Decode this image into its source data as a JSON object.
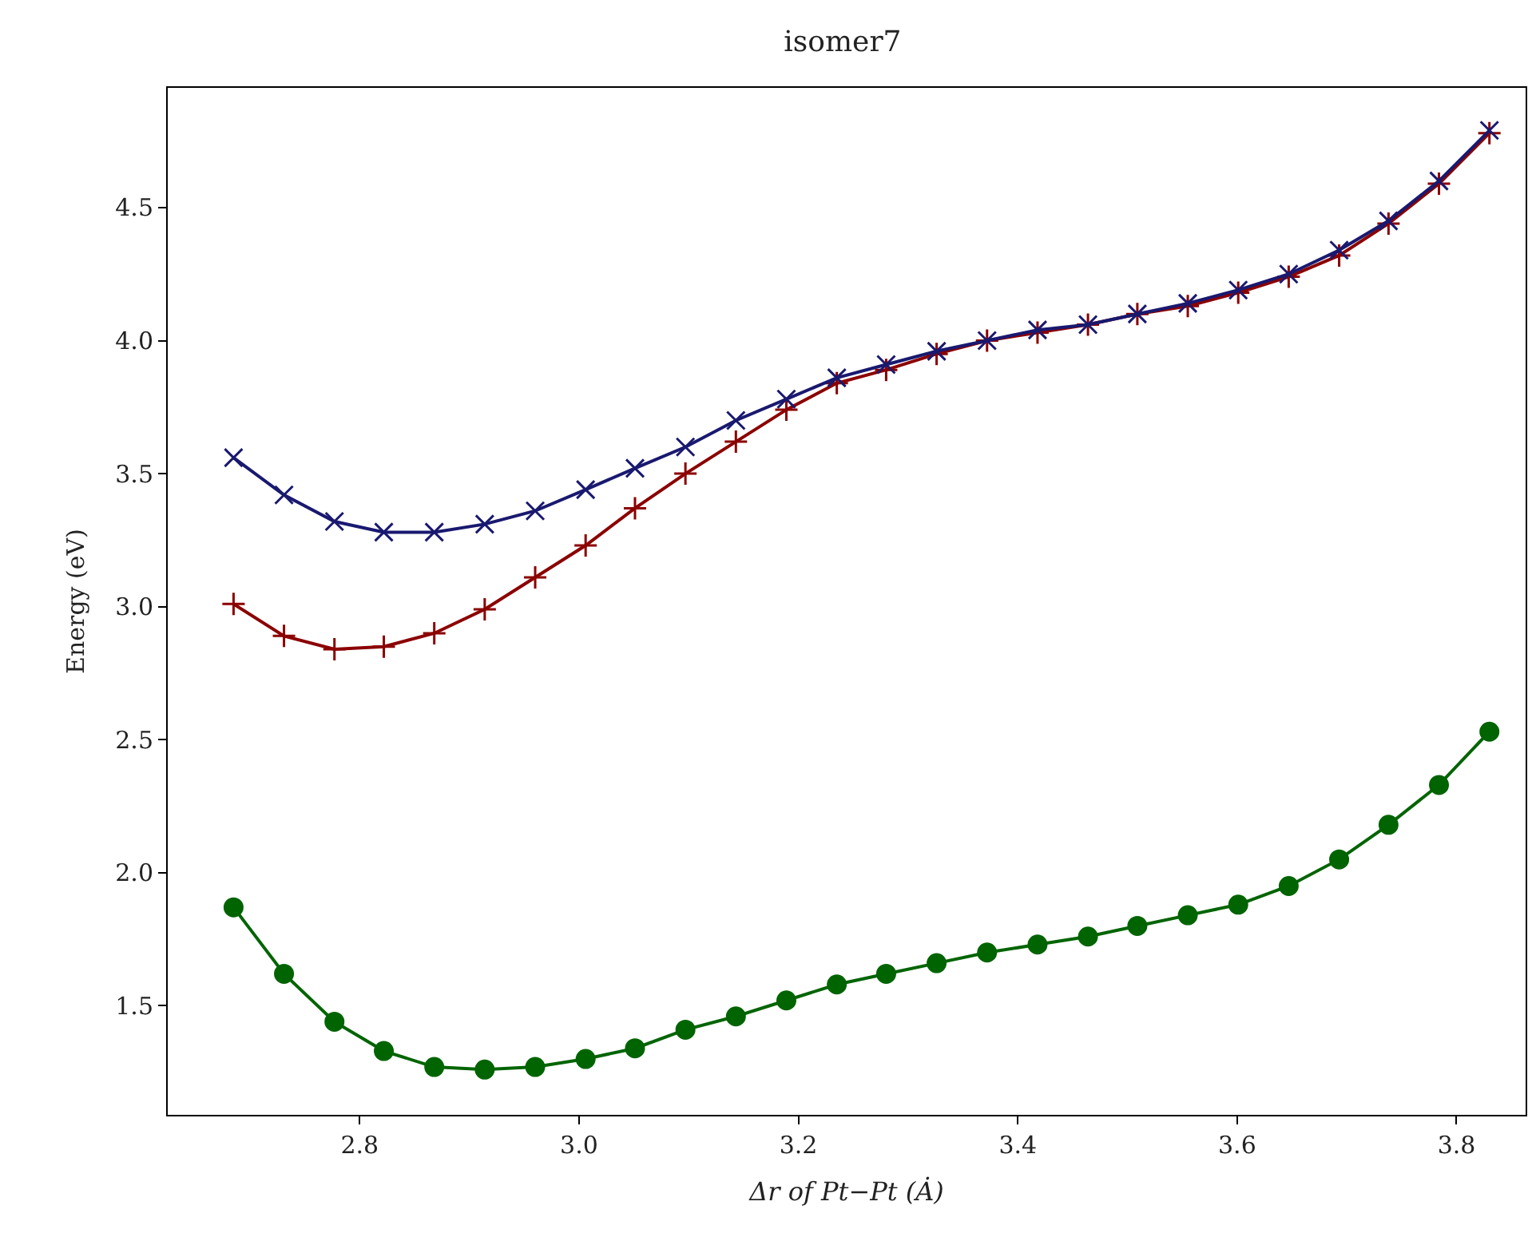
{
  "chart_data": {
    "type": "line",
    "title": "isomer7",
    "xlabel": "Δr of Pt−Pt (Ȧ)",
    "ylabel": "Energy (eV)",
    "x": [
      2.685,
      2.731,
      2.777,
      2.822,
      2.868,
      2.914,
      2.96,
      3.006,
      3.051,
      3.097,
      3.143,
      3.189,
      3.235,
      3.28,
      3.326,
      3.372,
      3.418,
      3.464,
      3.509,
      3.555,
      3.601,
      3.647,
      3.693,
      3.738,
      3.784,
      3.83
    ],
    "series": [
      {
        "color": "#8b0000",
        "marker": "plus",
        "values": [
          3.01,
          2.89,
          2.84,
          2.85,
          2.9,
          2.99,
          3.11,
          3.23,
          3.37,
          3.5,
          3.62,
          3.74,
          3.84,
          3.89,
          3.95,
          4.0,
          4.03,
          4.06,
          4.1,
          4.13,
          4.18,
          4.24,
          4.32,
          4.44,
          4.59,
          4.78
        ]
      },
      {
        "color": "#191970",
        "marker": "cross",
        "values": [
          3.56,
          3.42,
          3.32,
          3.28,
          3.28,
          3.31,
          3.36,
          3.44,
          3.52,
          3.6,
          3.7,
          3.78,
          3.86,
          3.91,
          3.96,
          4.0,
          4.04,
          4.06,
          4.1,
          4.14,
          4.19,
          4.25,
          4.34,
          4.45,
          4.6,
          4.79
        ]
      },
      {
        "color": "#006400",
        "marker": "circle",
        "values": [
          1.87,
          1.62,
          1.44,
          1.33,
          1.27,
          1.26,
          1.27,
          1.3,
          1.34,
          1.41,
          1.46,
          1.52,
          1.58,
          1.62,
          1.66,
          1.7,
          1.73,
          1.76,
          1.8,
          1.84,
          1.88,
          1.95,
          2.05,
          2.18,
          2.33,
          2.53
        ]
      }
    ],
    "xlim": [
      2.625,
      3.863
    ],
    "xticks": [
      {
        "value": 2.8,
        "label": "2.8"
      },
      {
        "value": 3.0,
        "label": "3.0"
      },
      {
        "value": 3.2,
        "label": "3.2"
      },
      {
        "value": 3.4,
        "label": "3.4"
      },
      {
        "value": 3.6,
        "label": "3.6"
      },
      {
        "value": 3.8,
        "label": "3.8"
      }
    ],
    "ylim": [
      1.09,
      4.95
    ],
    "yticks": [
      {
        "value": 1.5,
        "label": "1.5"
      },
      {
        "value": 2.0,
        "label": "2.0"
      },
      {
        "value": 2.5,
        "label": "2.5"
      },
      {
        "value": 3.0,
        "label": "3.0"
      },
      {
        "value": 3.5,
        "label": "3.5"
      },
      {
        "value": 4.0,
        "label": "4.0"
      },
      {
        "value": 4.5,
        "label": "4.5"
      }
    ]
  }
}
